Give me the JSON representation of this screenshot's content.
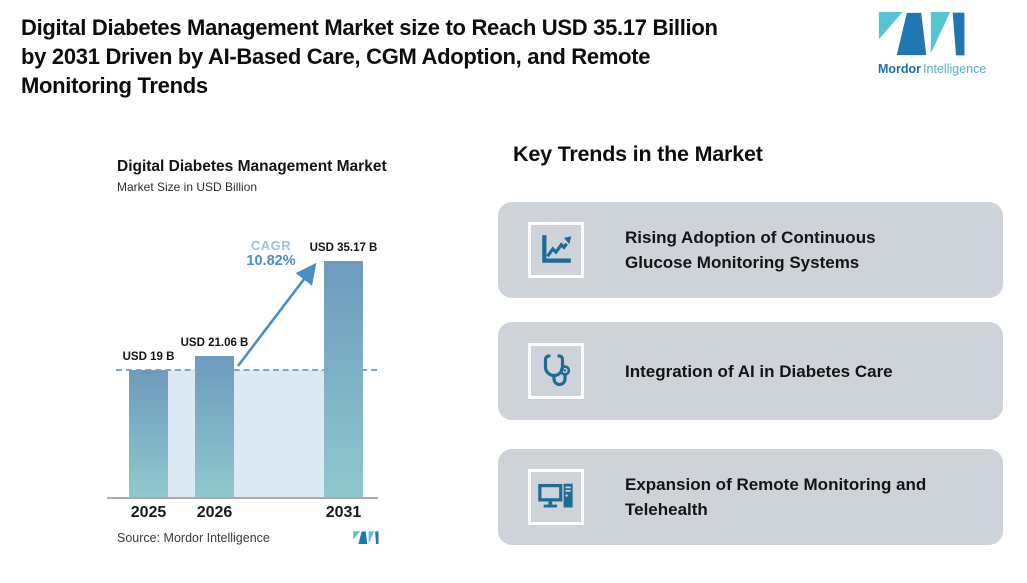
{
  "header": {
    "lines": [
      "Digital Diabetes Management Market size to Reach USD 35.17 Billion",
      "by 2031 Driven by AI-Based Care, CGM Adoption, and Remote",
      "Monitoring Trends"
    ]
  },
  "brand": {
    "mordor": "Mordor",
    "intelligence": "Intelligence",
    "logo_icon": "mordor-intelligence-m-logo",
    "colors": {
      "teal": "#56c5d2",
      "blue": "#2077b4"
    }
  },
  "chart": {
    "title": "Digital Diabetes Management Market",
    "subtitle": "Market Size in USD Billion",
    "cagr_label": "CAGR",
    "cagr_value": "10.82%",
    "source": "Source: Mordor Intelligence"
  },
  "chart_data": {
    "type": "bar",
    "title": "Digital Diabetes Management Market",
    "subtitle": "Market Size in USD Billion",
    "categories": [
      "2025",
      "2026",
      "2031"
    ],
    "values": [
      19,
      21.06,
      35.17
    ],
    "value_labels": [
      "USD 19 B",
      "USD 21.06 B",
      "USD 35.17 B"
    ],
    "unit": "USD Billion",
    "cagr_percent": 10.82,
    "ylim": [
      0,
      38
    ],
    "grid": false,
    "dashed_reference_value": 19,
    "bar_gradient_top": "#6d9bbd",
    "bar_gradient_bottom": "#8fc8cd",
    "reference_line_color": "#7fa8c9",
    "shaded_region_color": "#dde9f2",
    "arrow_color": "#4a8fc4",
    "annotations": [
      {
        "text": "CAGR 10.82%",
        "type": "growth-arrow",
        "from_category": "2026",
        "to_category": "2031"
      }
    ],
    "source": "Source: Mordor Intelligence"
  },
  "trends": {
    "heading": "Key Trends in the Market",
    "items": [
      {
        "icon": "line-chart-growth-icon",
        "label": "Rising Adoption of Continuous Glucose Monitoring Systems",
        "lines": [
          "Rising Adoption of Continuous",
          "Glucose Monitoring Systems"
        ]
      },
      {
        "icon": "stethoscope-icon",
        "label": "Integration of AI in Diabetes Care",
        "lines": [
          "Integration of AI in Diabetes Care",
          ""
        ]
      },
      {
        "icon": "desktop-computer-icon",
        "label": "Expansion of Remote Monitoring and Telehealth",
        "lines": [
          "Expansion of Remote Monitoring and",
          "Telehealth"
        ]
      }
    ],
    "card_bg": "#ced3da",
    "icon_color": "#1e6b94"
  }
}
